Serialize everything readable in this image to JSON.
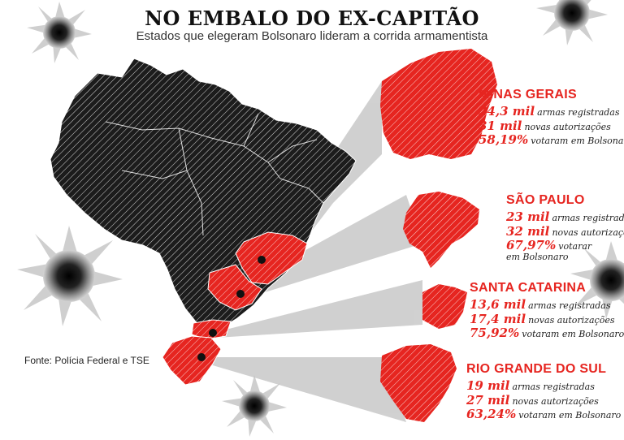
{
  "header": {
    "title": "NO EMBALO DO EX-CAPITÃO",
    "subtitle": "Estados que elegeram Bolsonaro lideram a corrida armamentista"
  },
  "source": "Fonte: Polícia Federal e TSE",
  "colors": {
    "highlight": "#e62520",
    "map_dark": "#1c1c1c",
    "hatch": "#ffffff",
    "cone": "#bfbfbf"
  },
  "icons": [
    "bullet-hole-icon"
  ],
  "states": [
    {
      "name": "MINAS GERAIS",
      "lines": [
        {
          "value": "24,3 mil",
          "label": "armas registradas"
        },
        {
          "value": "31 mil",
          "label": "novas autorizações"
        },
        {
          "value": "58,19%",
          "label": "votaram em Bolsonaro"
        }
      ]
    },
    {
      "name": "SÃO PAULO",
      "lines": [
        {
          "value": "23 mil",
          "label": "armas registradas"
        },
        {
          "value": "32 mil",
          "label": "novas autorizações"
        },
        {
          "value": "67,97%",
          "label": "votarar"
        }
      ],
      "continuation": "em Bolsonaro"
    },
    {
      "name": "SANTA CATARINA",
      "lines": [
        {
          "value": "13,6 mil",
          "label": "armas registradas"
        },
        {
          "value": "17,4 mil",
          "label": "novas autorizações"
        },
        {
          "value": "75,92%",
          "label": "votaram em Bolsonaro"
        }
      ]
    },
    {
      "name": "RIO GRANDE DO SUL",
      "lines": [
        {
          "value": "19 mil",
          "label": "armas registradas"
        },
        {
          "value": "27 mil",
          "label": "novas autorizações"
        },
        {
          "value": "63,24%",
          "label": "votaram em Bolsonaro"
        }
      ]
    }
  ]
}
